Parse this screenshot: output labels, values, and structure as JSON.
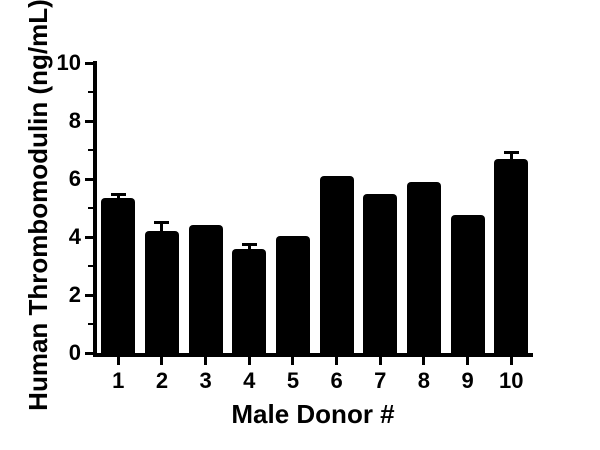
{
  "chart_data": {
    "type": "bar",
    "title": "",
    "xlabel": "Male Donor #",
    "ylabel": "Human Thrombomodulin (ng/mL)",
    "categories": [
      "1",
      "2",
      "3",
      "4",
      "5",
      "6",
      "7",
      "8",
      "9",
      "10"
    ],
    "values": [
      5.35,
      4.2,
      4.4,
      3.6,
      4.05,
      6.1,
      5.5,
      5.9,
      4.75,
      6.7
    ],
    "errors": [
      0.1,
      0.3,
      0,
      0.15,
      0,
      0,
      0,
      0,
      0,
      0.22
    ],
    "error_style": "upper-cap",
    "ylim": [
      0,
      10
    ],
    "yticks_major": [
      0,
      2,
      4,
      6,
      8,
      10
    ],
    "yticks_minor": [
      1,
      3,
      5,
      7,
      9
    ],
    "bar_color": "#000000",
    "axis_color": "#000000",
    "background_color": "#ffffff",
    "grid": false,
    "legend": false
  }
}
